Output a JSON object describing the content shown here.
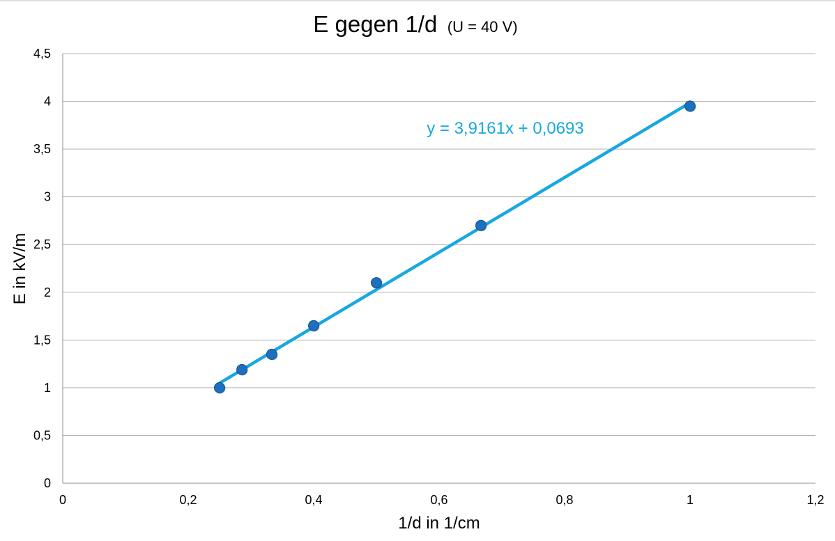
{
  "chart_data": {
    "type": "scatter",
    "title": "E gegen 1/d",
    "subtitle": "(U = 40 V)",
    "xlabel": "1/d in 1/cm",
    "ylabel": "E in kV/m",
    "xlim": [
      0,
      1.2
    ],
    "ylim": [
      0,
      4.5
    ],
    "x_ticks": [
      "0",
      "0,2",
      "0,4",
      "0,6",
      "0,8",
      "1",
      "1,2"
    ],
    "y_ticks": [
      "0",
      "0,5",
      "1",
      "1,5",
      "2",
      "2,5",
      "3",
      "3,5",
      "4",
      "4,5"
    ],
    "grid": true,
    "series": [
      {
        "x": [
          0.25,
          0.2857,
          0.3333,
          0.4,
          0.5,
          0.6667,
          1.0
        ],
        "y": [
          1.0,
          1.19,
          1.35,
          1.65,
          2.1,
          2.7,
          3.95
        ],
        "color": "#1F6FBF"
      }
    ],
    "trendline": {
      "type": "linear",
      "slope": 3.9161,
      "intercept": 0.0693,
      "x_range": [
        0.25,
        1.0
      ],
      "equation": "y = 3,9161x + 0,0693",
      "color": "#18A8E0"
    }
  }
}
